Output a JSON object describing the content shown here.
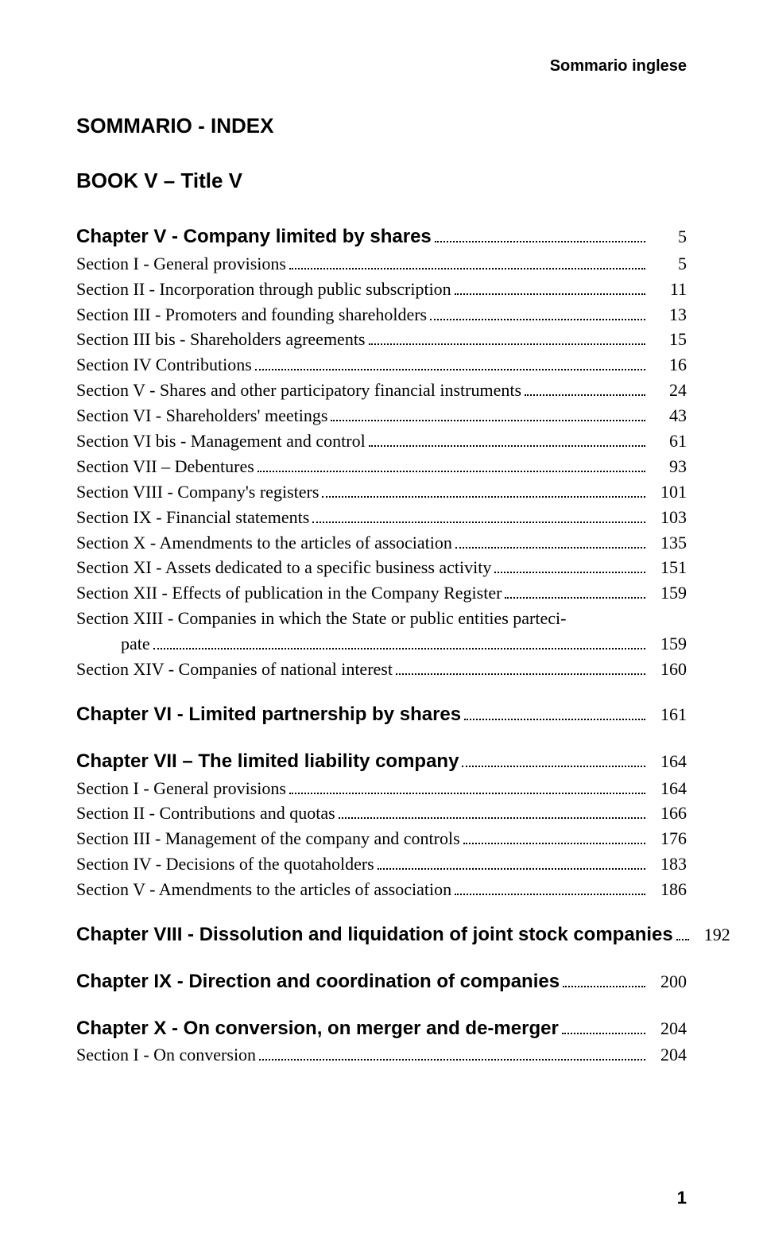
{
  "headerRight": "Sommario inglese",
  "mainTitle": "SOMMARIO - INDEX",
  "bookTitle": "BOOK V – Title V",
  "footerPage": "1",
  "toc": [
    {
      "type": "chapterLine",
      "label": "Chapter V - Company limited by shares",
      "page": "5"
    },
    {
      "type": "section",
      "label": "Section I - General provisions",
      "page": "5"
    },
    {
      "type": "section",
      "label": "Section II - Incorporation through public subscription",
      "page": "11"
    },
    {
      "type": "section",
      "label": "Section III - Promoters and founding shareholders",
      "page": "13"
    },
    {
      "type": "section",
      "label": "Section III bis - Shareholders agreements",
      "page": "15"
    },
    {
      "type": "section",
      "label": "Section IV Contributions",
      "page": "16"
    },
    {
      "type": "section",
      "label": "Section V - Shares and other participatory financial instruments",
      "page": "24"
    },
    {
      "type": "section",
      "label": "Section VI - Shareholders' meetings",
      "page": "43"
    },
    {
      "type": "section",
      "label": "Section VI bis - Management and control",
      "page": "61"
    },
    {
      "type": "section",
      "label": "Section VII – Debentures",
      "page": "93"
    },
    {
      "type": "section",
      "label": "Section VIII - Company's registers",
      "page": "101"
    },
    {
      "type": "section",
      "label": "Section IX - Financial statements",
      "page": "103"
    },
    {
      "type": "section",
      "label": "Section X - Amendments to the articles of association",
      "page": "135"
    },
    {
      "type": "section",
      "label": "Section XI - Assets dedicated to a specific business activity",
      "page": "151"
    },
    {
      "type": "section",
      "label": "Section XII - Effects of publication in the Company Register",
      "page": "159"
    },
    {
      "type": "multiline",
      "line1": "Section XIII - Companies in which the State or public entities parteci-",
      "indentLabel": "pate",
      "page": "159"
    },
    {
      "type": "section",
      "label": "Section XIV - Companies of national interest",
      "page": "160"
    },
    {
      "type": "spacer"
    },
    {
      "type": "chapterLine",
      "label": "Chapter VI - Limited partnership by shares",
      "page": "161"
    },
    {
      "type": "spacer"
    },
    {
      "type": "chapterLine",
      "label": "Chapter VII – The limited liability company",
      "page": "164"
    },
    {
      "type": "section",
      "label": "Section I - General provisions",
      "page": "164"
    },
    {
      "type": "section",
      "label": "Section II - Contributions and quotas",
      "page": "166"
    },
    {
      "type": "section",
      "label": "Section III - Management of the company and controls",
      "page": "176"
    },
    {
      "type": "section",
      "label": "Section IV - Decisions of the quotaholders",
      "page": "183"
    },
    {
      "type": "section",
      "label": "Section V - Amendments to the articles of association",
      "page": "186"
    },
    {
      "type": "spacer"
    },
    {
      "type": "chapterLine",
      "label": "Chapter VIII - Dissolution and liquidation of joint stock companies",
      "page": "192"
    },
    {
      "type": "spacer"
    },
    {
      "type": "chapterLine",
      "label": "Chapter IX - Direction and  coordination of companies",
      "page": "200"
    },
    {
      "type": "spacer"
    },
    {
      "type": "chapterLine",
      "label": "Chapter X - On conversion, on merger and de-merger",
      "page": "204"
    },
    {
      "type": "section",
      "label": "Section I - On conversion",
      "page": "204"
    }
  ]
}
